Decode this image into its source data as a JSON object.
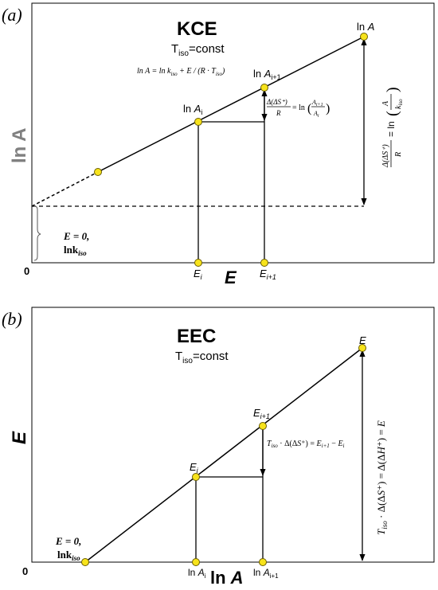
{
  "panel_a": {
    "tag": "(a)",
    "title": "KCE",
    "condition": "T",
    "condition_sub": "iso",
    "condition_tail": "=const",
    "equation": "ln A = ln k",
    "equation_sub": "iso",
    "equation_tail": " + E / (R · T",
    "equation_tail_sub": "iso",
    "equation_close": ")",
    "y_axis_label": "ln A",
    "x_axis_label": "E",
    "origin": "0",
    "pt_top": "ln A",
    "pt_i1": "ln A",
    "pt_i1_sub": "i+1",
    "pt_i": "ln A",
    "pt_i_sub": "i",
    "tick_i": "E",
    "tick_i_sub": "i",
    "tick_i1": "E",
    "tick_i1_sub": "i+1",
    "step_eq": "Δ(ΔS⁺)/R = ln(A_{i+1}/A_i)",
    "vert_eq": "Δ(ΔS⁺)/R = ln(A/k_iso)",
    "intercept_1": "E = 0,",
    "intercept_2": "lnk",
    "intercept_2_sub": "iso"
  },
  "panel_b": {
    "tag": "(b)",
    "title": "EEC",
    "condition": "T",
    "condition_sub": "iso",
    "condition_tail": "=const",
    "y_axis_label": "E",
    "x_axis_label": "ln A",
    "origin": "0",
    "pt_top": "E",
    "pt_i1": "E",
    "pt_i1_sub": "i+1",
    "pt_i": "E",
    "pt_i_sub": "i",
    "tick_i": "ln A",
    "tick_i_sub": "i",
    "tick_i1": "ln A",
    "tick_i1_sub": "i+1",
    "step_eq": "T_iso · Δ(ΔS⁺) = E_{i+1} − E_i",
    "vert_eq": "T_iso · Δ(ΔS⁺) = Δ(ΔH⁺) = E",
    "intercept_1": "E = 0,",
    "intercept_2": "lnk",
    "intercept_2_sub": "iso"
  },
  "colors": {
    "point_fill": "#f7e31b",
    "point_stroke": "#7a6a00",
    "axis_label_gray": "#808080"
  }
}
